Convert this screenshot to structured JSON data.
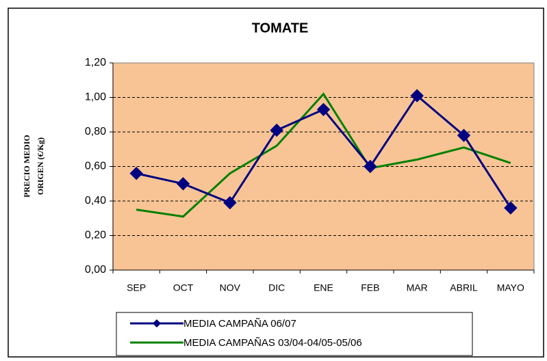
{
  "chart_data": {
    "type": "line",
    "title": "TOMATE",
    "ylabel": [
      "PRECIO MEDIO",
      "ORIGEN (€/Kg)"
    ],
    "categories": [
      "SEP",
      "OCT",
      "NOV",
      "DIC",
      "ENE",
      "FEB",
      "MAR",
      "ABRIL",
      "MAYO"
    ],
    "series": [
      {
        "name": "MEDIA CAMPAÑA 06/07",
        "color": "#000080",
        "marker": "diamond",
        "values": [
          0.56,
          0.5,
          0.39,
          0.81,
          0.93,
          0.6,
          1.01,
          0.78,
          0.36
        ]
      },
      {
        "name": "MEDIA CAMPAÑAS 03/04-04/05-05/06",
        "color": "#008000",
        "values": [
          0.35,
          0.31,
          0.56,
          0.72,
          1.02,
          0.59,
          0.64,
          0.71,
          0.62
        ]
      }
    ],
    "ylim": [
      0,
      1.2
    ],
    "yticks": [
      {
        "value": 0,
        "label": "0,00"
      },
      {
        "value": 0.2,
        "label": "0,20"
      },
      {
        "value": 0.4,
        "label": "0,40"
      },
      {
        "value": 0.6,
        "label": "0,60"
      },
      {
        "value": 0.8,
        "label": "0,80"
      },
      {
        "value": 1.0,
        "label": "1,00"
      },
      {
        "value": 1.2,
        "label": "1,20"
      }
    ],
    "grid": true,
    "plot_background": "#f8c495",
    "legend": "bottom"
  }
}
